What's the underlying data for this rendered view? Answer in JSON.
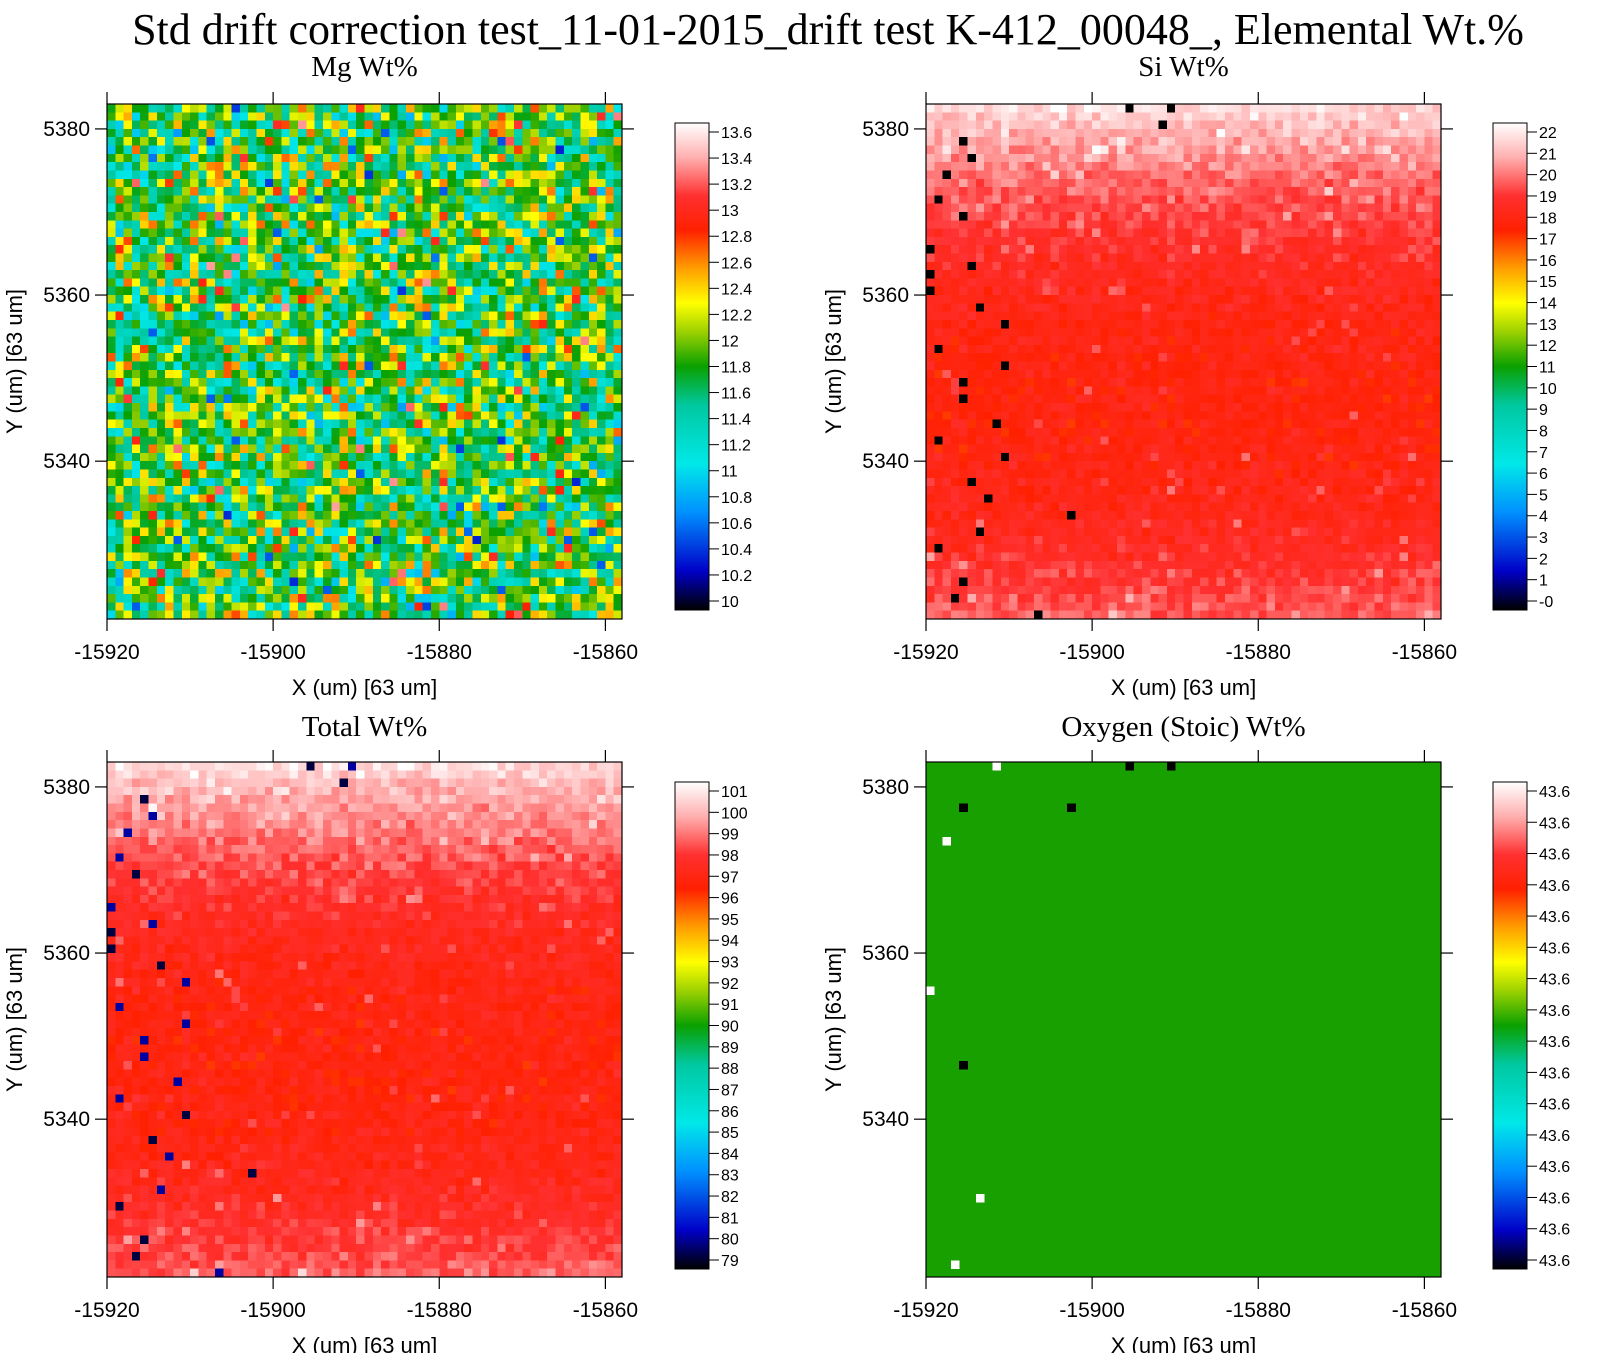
{
  "title": "Std drift correction test_11-01-2015_drift test K-412_00048_, Elemental Wt.%",
  "chart_data": [
    {
      "type": "heatmap",
      "title": "Mg Wt%",
      "xlabel": "X (um)   [63 um]",
      "ylabel": "Y (um)   [63 um]",
      "xlim": [
        -15920,
        -15858
      ],
      "ylim": [
        5321,
        5383
      ],
      "xticks": [
        -15920,
        -15900,
        -15880,
        -15860
      ],
      "yticks": [
        5380,
        5360,
        5340
      ],
      "grid_size": [
        62,
        62
      ],
      "value_range": [
        9.9,
        13.7
      ],
      "value_pattern": "random noise around 11.8 (green/yellow), scattered cyan, red and blue pixels",
      "colorbar_ticks": [
        "13.6",
        "13.4",
        "13.2",
        "13",
        "12.8",
        "12.6",
        "12.4",
        "12.2",
        "12",
        "11.8",
        "11.6",
        "11.4",
        "11.2",
        "11",
        "10.8",
        "10.6",
        "10.4",
        "10.2",
        "10"
      ],
      "colormap": "rainbow: black-blue-cyan-green-yellow-red-white"
    },
    {
      "type": "heatmap",
      "title": "Si Wt%",
      "xlabel": "X (um)   [63 um]",
      "ylabel": "Y (um)   [63 um]",
      "xlim": [
        -15920,
        -15858
      ],
      "ylim": [
        5321,
        5383
      ],
      "xticks": [
        -15920,
        -15900,
        -15880,
        -15860
      ],
      "yticks": [
        5380,
        5360,
        5340
      ],
      "grid_size": [
        62,
        62
      ],
      "value_range": [
        -0.5,
        22.5
      ],
      "value_pattern": "red (~18-19) in middle rows, fading to light pink/white (~21-22) at top and bottom edges; a few black (~0) pixels near left edge",
      "colorbar_ticks": [
        "22",
        "21",
        "20",
        "19",
        "18",
        "17",
        "16",
        "15",
        "14",
        "13",
        "12",
        "11",
        "10",
        "9",
        "8",
        "7",
        "6",
        "5",
        "4",
        "3",
        "2",
        "1",
        "-0"
      ],
      "colormap": "rainbow: black-blue-cyan-green-yellow-red-white"
    },
    {
      "type": "heatmap",
      "title": "Total Wt%",
      "xlabel": "X (um)   [63 um]",
      "ylabel": "Y (um)   [63 um]",
      "xlim": [
        -15920,
        -15858
      ],
      "ylim": [
        5321,
        5383
      ],
      "xticks": [
        -15920,
        -15900,
        -15880,
        -15860
      ],
      "yticks": [
        5380,
        5360,
        5340
      ],
      "grid_size": [
        62,
        62
      ],
      "value_range": [
        78.5,
        101.5
      ],
      "value_pattern": "red (~97) in middle rows, fading to light pink/white (~100) at top and bottom edges; a few dark blue/black pixels near left edge",
      "colorbar_ticks": [
        "101",
        "100",
        "99",
        "98",
        "97",
        "96",
        "95",
        "94",
        "93",
        "92",
        "91",
        "90",
        "89",
        "88",
        "87",
        "86",
        "85",
        "84",
        "83",
        "82",
        "81",
        "80",
        "79"
      ],
      "colormap": "rainbow: black-blue-cyan-green-yellow-red-white"
    },
    {
      "type": "heatmap",
      "title": "Oxygen (Stoic) Wt%",
      "xlabel": "X (um)   [63 um]",
      "ylabel": "Y (um)   [63 um]",
      "xlim": [
        -15920,
        -15858
      ],
      "ylim": [
        5321,
        5383
      ],
      "xticks": [
        -15920,
        -15900,
        -15880,
        -15860
      ],
      "yticks": [
        5380,
        5360,
        5340
      ],
      "grid_size": [
        62,
        62
      ],
      "value_range": [
        43.6,
        43.6
      ],
      "value_pattern": "uniform green over the whole map, with a few isolated black and white pixels",
      "colorbar_ticks": [
        "43.6",
        "43.6",
        "43.6",
        "43.6",
        "43.6",
        "43.6",
        "43.6",
        "43.6",
        "43.6",
        "43.6",
        "43.6",
        "43.6",
        "43.6",
        "43.6",
        "43.6",
        "43.6"
      ],
      "colormap": "rainbow: black-blue-cyan-green-yellow-red-white"
    }
  ]
}
